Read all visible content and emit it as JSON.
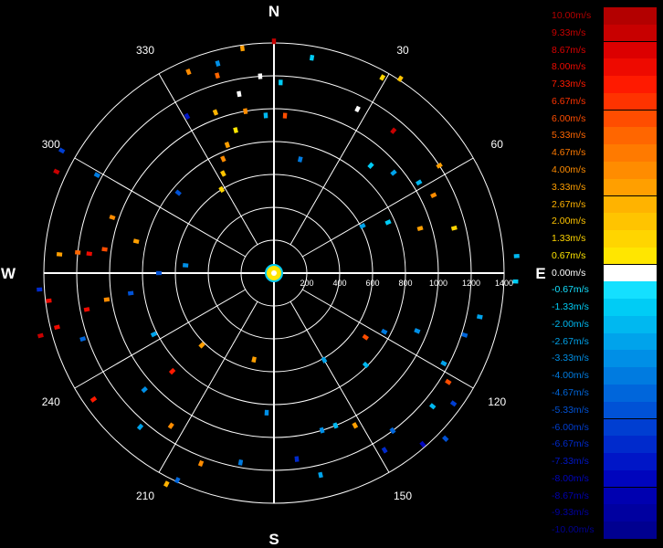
{
  "chart_data": {
    "type": "polar-scatter",
    "compass": {
      "north": "N",
      "east": "E",
      "south": "S",
      "west": "W"
    },
    "bearing_labels": [
      "30",
      "60",
      "120",
      "150",
      "210",
      "240",
      "300",
      "330"
    ],
    "range_labels": [
      "200",
      "400",
      "600",
      "800",
      "1000",
      "1200",
      "1400"
    ],
    "range_max": 1400,
    "grid": true,
    "legend_position": "right",
    "colorbar": {
      "unit": "m/s",
      "entries": [
        {
          "label": "10.00m/s",
          "color": "#b30000"
        },
        {
          "label": "9.33m/s",
          "color": "#c80000"
        },
        {
          "label": "8.67m/s",
          "color": "#dc0000"
        },
        {
          "label": "8.00m/s",
          "color": "#ee0a00"
        },
        {
          "label": "7.33m/s",
          "color": "#ff1a00"
        },
        {
          "label": "6.67m/s",
          "color": "#ff3300"
        },
        {
          "label": "6.00m/s",
          "color": "#ff4d00"
        },
        {
          "label": "5.33m/s",
          "color": "#ff6600"
        },
        {
          "label": "4.67m/s",
          "color": "#ff7a00"
        },
        {
          "label": "4.00m/s",
          "color": "#ff8c00"
        },
        {
          "label": "3.33m/s",
          "color": "#ff9f00"
        },
        {
          "label": "2.67m/s",
          "color": "#ffb300"
        },
        {
          "label": "2.00m/s",
          "color": "#ffc400"
        },
        {
          "label": "1.33m/s",
          "color": "#ffd500"
        },
        {
          "label": "0.67m/s",
          "color": "#ffe600"
        },
        {
          "label": "0.00m/s",
          "color": "#ffffff"
        },
        {
          "label": "-0.67m/s",
          "color": "#14e0ff"
        },
        {
          "label": "-1.33m/s",
          "color": "#00ccf5"
        },
        {
          "label": "-2.00m/s",
          "color": "#00b8f0"
        },
        {
          "label": "-2.67m/s",
          "color": "#00a3eb"
        },
        {
          "label": "-3.33m/s",
          "color": "#008fe6"
        },
        {
          "label": "-4.00m/s",
          "color": "#007be0"
        },
        {
          "label": "-4.67m/s",
          "color": "#0066db"
        },
        {
          "label": "-5.33m/s",
          "color": "#0052d6"
        },
        {
          "label": "-6.00m/s",
          "color": "#003ed1"
        },
        {
          "label": "-6.67m/s",
          "color": "#002acc"
        },
        {
          "label": "-7.33m/s",
          "color": "#0016c7"
        },
        {
          "label": "-8.00m/s",
          "color": "#0005bd"
        },
        {
          "label": "-8.67m/s",
          "color": "#0000b0"
        },
        {
          "label": "-9.33m/s",
          "color": "#0000a0"
        },
        {
          "label": "-10.00m/s",
          "color": "#000090"
        }
      ]
    },
    "points": [
      {
        "az": 0,
        "range": 1410,
        "v": 9.3
      },
      {
        "az": 352,
        "range": 1380,
        "v": 3.3
      },
      {
        "az": 345,
        "range": 1320,
        "v": -3.3
      },
      {
        "az": 344,
        "range": 1250,
        "v": 5.3
      },
      {
        "az": 337,
        "range": 1330,
        "v": 4.0
      },
      {
        "az": 349,
        "range": 1110,
        "v": 0.0
      },
      {
        "az": 350,
        "range": 1000,
        "v": 4.0
      },
      {
        "az": 340,
        "range": 1040,
        "v": 2.7
      },
      {
        "az": 331,
        "range": 1090,
        "v": -7.3
      },
      {
        "az": 345,
        "range": 900,
        "v": 0.7
      },
      {
        "az": 340,
        "range": 830,
        "v": 3.3
      },
      {
        "az": 336,
        "range": 760,
        "v": 4.0
      },
      {
        "az": 333,
        "range": 680,
        "v": 2.0
      },
      {
        "az": 328,
        "range": 600,
        "v": 1.3
      },
      {
        "az": 357,
        "range": 960,
        "v": -2.0
      },
      {
        "az": 4,
        "range": 960,
        "v": 6.0
      },
      {
        "az": 2,
        "range": 1160,
        "v": -1.3
      },
      {
        "az": 356,
        "range": 1200,
        "v": 0.0
      },
      {
        "az": 10,
        "range": 1330,
        "v": -1.3
      },
      {
        "az": 29,
        "range": 1360,
        "v": 1.3
      },
      {
        "az": 33,
        "range": 1410,
        "v": 2.0
      },
      {
        "az": 27,
        "range": 1120,
        "v": 0.0
      },
      {
        "az": 40,
        "range": 1130,
        "v": 9.3
      },
      {
        "az": 42,
        "range": 880,
        "v": -1.3
      },
      {
        "az": 50,
        "range": 950,
        "v": -2.7
      },
      {
        "az": 58,
        "range": 1040,
        "v": -2.0
      },
      {
        "az": 57,
        "range": 1200,
        "v": 3.3
      },
      {
        "az": 64,
        "range": 1080,
        "v": 4.0
      },
      {
        "az": 76,
        "range": 1130,
        "v": 1.3
      },
      {
        "az": 73,
        "range": 930,
        "v": 3.3
      },
      {
        "az": 66,
        "range": 760,
        "v": -1.3
      },
      {
        "az": 86,
        "range": 1480,
        "v": -2.0
      },
      {
        "az": 92,
        "range": 1470,
        "v": -1.3
      },
      {
        "az": 62,
        "range": 610,
        "v": -2.7
      },
      {
        "az": 13,
        "range": 710,
        "v": -4.0
      },
      {
        "az": 102,
        "range": 1280,
        "v": -2.7
      },
      {
        "az": 108,
        "range": 1220,
        "v": -4.7
      },
      {
        "az": 112,
        "range": 940,
        "v": -3.3
      },
      {
        "az": 118,
        "range": 1170,
        "v": -2.7
      },
      {
        "az": 122,
        "range": 1250,
        "v": 6.0
      },
      {
        "az": 126,
        "range": 1350,
        "v": -6.0
      },
      {
        "az": 130,
        "range": 1260,
        "v": -2.0
      },
      {
        "az": 134,
        "range": 1450,
        "v": -5.3
      },
      {
        "az": 139,
        "range": 1380,
        "v": -8.0
      },
      {
        "az": 143,
        "range": 1200,
        "v": -4.7
      },
      {
        "az": 148,
        "range": 1270,
        "v": -6.7
      },
      {
        "az": 152,
        "range": 1050,
        "v": 3.3
      },
      {
        "az": 158,
        "range": 1000,
        "v": -2.0
      },
      {
        "az": 163,
        "range": 1000,
        "v": -3.3
      },
      {
        "az": 167,
        "range": 1260,
        "v": -2.7
      },
      {
        "az": 173,
        "range": 1140,
        "v": -6.7
      },
      {
        "az": 135,
        "range": 790,
        "v": -2.0
      },
      {
        "az": 125,
        "range": 680,
        "v": 6.0
      },
      {
        "az": 118,
        "range": 760,
        "v": -4.0
      },
      {
        "az": 150,
        "range": 610,
        "v": -2.7
      },
      {
        "az": 205,
        "range": 1390,
        "v": -4.7
      },
      {
        "az": 207,
        "range": 1440,
        "v": 2.7
      },
      {
        "az": 201,
        "range": 1240,
        "v": 4.0
      },
      {
        "az": 214,
        "range": 1120,
        "v": 4.0
      },
      {
        "az": 221,
        "range": 1240,
        "v": -2.7
      },
      {
        "az": 228,
        "range": 1060,
        "v": -3.3
      },
      {
        "az": 235,
        "range": 1340,
        "v": 7.3
      },
      {
        "az": 226,
        "range": 860,
        "v": 7.3
      },
      {
        "az": 243,
        "range": 820,
        "v": -2.7
      },
      {
        "az": 251,
        "range": 1230,
        "v": -4.7
      },
      {
        "az": 256,
        "range": 1360,
        "v": 8.0
      },
      {
        "az": 259,
        "range": 1160,
        "v": 8.0
      },
      {
        "az": 261,
        "range": 1030,
        "v": 4.0
      },
      {
        "az": 262,
        "range": 880,
        "v": -5.3
      },
      {
        "az": 255,
        "range": 1470,
        "v": 9.3
      },
      {
        "az": 263,
        "range": 1380,
        "v": 8.0
      },
      {
        "az": 266,
        "range": 1430,
        "v": -6.7
      },
      {
        "az": 275,
        "range": 1310,
        "v": 3.3
      },
      {
        "az": 276,
        "range": 1130,
        "v": 8.0
      },
      {
        "az": 278,
        "range": 1040,
        "v": 6.0
      },
      {
        "az": 276,
        "range": 1200,
        "v": 5.3
      },
      {
        "az": 283,
        "range": 860,
        "v": 3.3
      },
      {
        "az": 289,
        "range": 1040,
        "v": 4.0
      },
      {
        "az": 295,
        "range": 1460,
        "v": 9.3
      },
      {
        "az": 300,
        "range": 1490,
        "v": -6.0
      },
      {
        "az": 299,
        "range": 1230,
        "v": -4.0
      },
      {
        "az": 310,
        "range": 760,
        "v": -5.3
      },
      {
        "az": 270,
        "range": 700,
        "v": -5.3
      },
      {
        "az": 275,
        "range": 540,
        "v": -3.3
      },
      {
        "az": 193,
        "range": 540,
        "v": 3.3
      },
      {
        "az": 225,
        "range": 620,
        "v": 3.3
      },
      {
        "az": 190,
        "range": 1170,
        "v": -4.0
      },
      {
        "az": 183,
        "range": 850,
        "v": -3.3
      }
    ]
  }
}
